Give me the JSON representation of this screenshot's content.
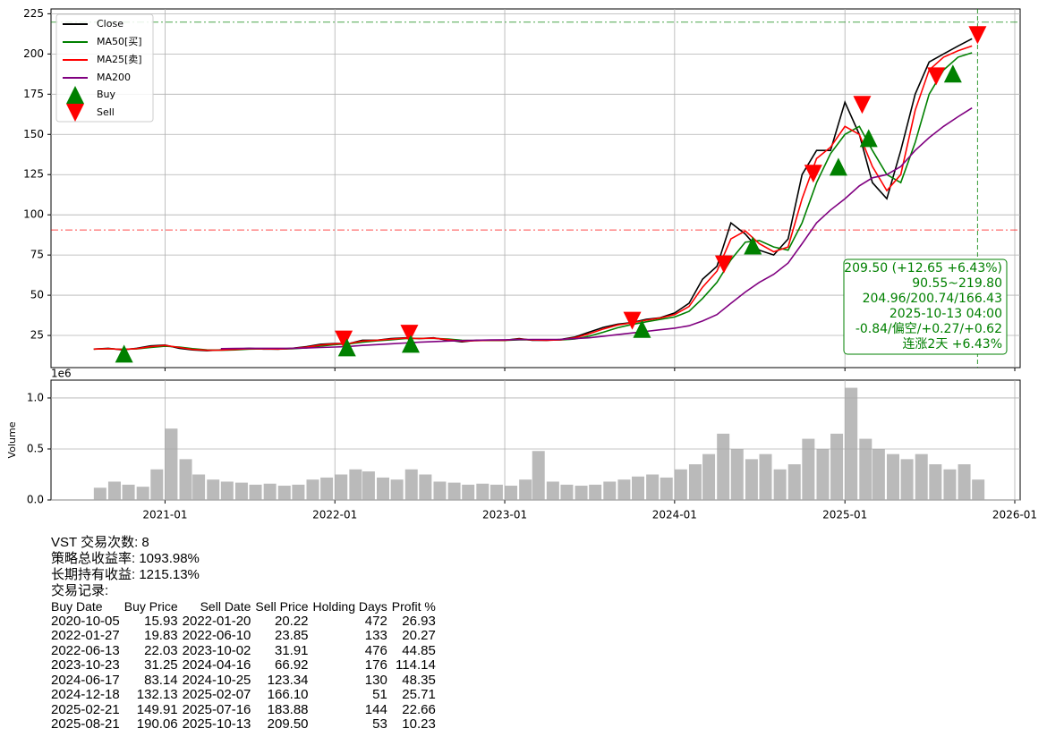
{
  "chart_data": [
    {
      "type": "line",
      "xlim": [
        "2020-05",
        "2026-01"
      ],
      "ylim": [
        5,
        228
      ],
      "yticks": [
        25,
        50,
        75,
        100,
        125,
        150,
        175,
        200,
        225
      ],
      "grid": true,
      "x": [
        "2020-08",
        "2020-09",
        "2020-10",
        "2020-11",
        "2020-12",
        "2021-01",
        "2021-02",
        "2021-03",
        "2021-04",
        "2021-05",
        "2021-06",
        "2021-07",
        "2021-08",
        "2021-09",
        "2021-10",
        "2021-11",
        "2021-12",
        "2022-01",
        "2022-02",
        "2022-03",
        "2022-04",
        "2022-05",
        "2022-06",
        "2022-07",
        "2022-08",
        "2022-09",
        "2022-10",
        "2022-11",
        "2022-12",
        "2023-01",
        "2023-02",
        "2023-03",
        "2023-04",
        "2023-05",
        "2023-06",
        "2023-07",
        "2023-08",
        "2023-09",
        "2023-10",
        "2023-11",
        "2023-12",
        "2024-01",
        "2024-02",
        "2024-03",
        "2024-04",
        "2024-05",
        "2024-06",
        "2024-07",
        "2024-08",
        "2024-09",
        "2024-10",
        "2024-11",
        "2024-12",
        "2025-01",
        "2025-02",
        "2025-03",
        "2025-04",
        "2025-05",
        "2025-06",
        "2025-07",
        "2025-08",
        "2025-09",
        "2025-10"
      ],
      "series": [
        {
          "name": "Close",
          "color": "#000000",
          "values": [
            16.5,
            17,
            16,
            17,
            18.5,
            19,
            17,
            16,
            15.5,
            16,
            16.5,
            17,
            16.5,
            16.5,
            17,
            18,
            19.5,
            20,
            20,
            22,
            22,
            23,
            23.5,
            23,
            23.5,
            22,
            21,
            22,
            22,
            22,
            23,
            22,
            22,
            22.5,
            24,
            27,
            30,
            32,
            33,
            35,
            36,
            39,
            45,
            60,
            68,
            95,
            88,
            78,
            75,
            85,
            125,
            140,
            140,
            170,
            150,
            120,
            110,
            140,
            175,
            195,
            200,
            205,
            209.5
          ]
        },
        {
          "name": "MA50[买]",
          "color": "#008000",
          "values": [
            16.5,
            16.7,
            16.4,
            16.6,
            17.5,
            18.3,
            17.8,
            16.8,
            16,
            15.8,
            16,
            16.5,
            16.6,
            16.5,
            16.7,
            17.3,
            18.4,
            19.3,
            19.8,
            20.8,
            21.6,
            22.3,
            23,
            23.2,
            23.2,
            22.8,
            22,
            21.8,
            21.9,
            21.9,
            22.3,
            22.3,
            22.1,
            22.2,
            22.8,
            24.5,
            27,
            29.8,
            31.8,
            33.5,
            35,
            36.5,
            40,
            48,
            58,
            72,
            83,
            84,
            80,
            78,
            95,
            120,
            138,
            150,
            155,
            140,
            125,
            120,
            145,
            175,
            190,
            198,
            200.74
          ]
        },
        {
          "name": "MA25[卖]",
          "color": "#ff0000",
          "values": [
            16.5,
            16.8,
            16.3,
            16.8,
            18,
            18.8,
            17.5,
            16.3,
            15.8,
            15.9,
            16.3,
            16.8,
            16.6,
            16.5,
            16.9,
            17.7,
            19,
            19.8,
            20,
            21.5,
            22,
            22.7,
            23.3,
            23.1,
            23.3,
            22.4,
            21.4,
            21.8,
            22,
            22,
            22.7,
            22.2,
            22,
            22.3,
            23.5,
            26,
            29,
            31.5,
            32.8,
            34.5,
            35.8,
            38,
            43,
            55,
            65,
            85,
            90,
            82,
            77,
            80,
            110,
            135,
            142,
            155,
            150,
            130,
            115,
            125,
            165,
            190,
            198,
            202,
            204.96
          ]
        },
        {
          "name": "MA200",
          "color": "#800080",
          "values": [
            null,
            null,
            null,
            null,
            null,
            null,
            null,
            null,
            null,
            16.8,
            16.9,
            17,
            17,
            17,
            17,
            17.2,
            17.5,
            17.8,
            18.2,
            18.8,
            19.3,
            19.8,
            20.3,
            20.8,
            21.2,
            21.5,
            21.8,
            22,
            22.2,
            22.3,
            22.4,
            22.5,
            22.5,
            22.6,
            23,
            23.5,
            24.5,
            25.5,
            26.5,
            27.5,
            28.5,
            29.5,
            31,
            34,
            38,
            45,
            52,
            58,
            63,
            70,
            82,
            95,
            103,
            110,
            118,
            123,
            125,
            130,
            140,
            148,
            155,
            161,
            166.43
          ]
        }
      ],
      "markers": [
        {
          "name": "Buy",
          "color": "#008000"
        },
        {
          "name": "Sell",
          "color": "#ff0000"
        }
      ],
      "hlines": [
        {
          "value": 219.8,
          "color": "#008000"
        },
        {
          "value": 90.55,
          "color": "#ff0000"
        }
      ],
      "vline": {
        "x": "2025-10-13",
        "color": "#008000"
      },
      "annotation": {
        "color": "#008000",
        "lines": [
          "209.50 (+12.65 +6.43%)",
          "90.55~219.80",
          "204.96/200.74/166.43",
          "2025-10-13 04:00",
          "-0.84/偏空/+0.27/+0.62",
          "连涨2天 +6.43%"
        ]
      }
    },
    {
      "type": "bar",
      "ylabel": "Volume",
      "offset_text": "1e6",
      "color": "#a9a9a9",
      "xlim": [
        "2020-05",
        "2026-01"
      ],
      "ylim": [
        0,
        1175000
      ],
      "yticks": [
        {
          "value": 0,
          "label": "0.0"
        },
        {
          "value": 500000,
          "label": "0.5"
        },
        {
          "value": 1000000,
          "label": "1.0"
        }
      ],
      "xticks": [
        "2021-01",
        "2022-01",
        "2023-01",
        "2024-01",
        "2025-01",
        "2026-01"
      ],
      "grid": true,
      "x": [
        "2020-08",
        "2020-09",
        "2020-10",
        "2020-11",
        "2020-12",
        "2021-01",
        "2021-02",
        "2021-03",
        "2021-04",
        "2021-05",
        "2021-06",
        "2021-07",
        "2021-08",
        "2021-09",
        "2021-10",
        "2021-11",
        "2021-12",
        "2022-01",
        "2022-02",
        "2022-03",
        "2022-04",
        "2022-05",
        "2022-06",
        "2022-07",
        "2022-08",
        "2022-09",
        "2022-10",
        "2022-11",
        "2022-12",
        "2023-01",
        "2023-02",
        "2023-03",
        "2023-04",
        "2023-05",
        "2023-06",
        "2023-07",
        "2023-08",
        "2023-09",
        "2023-10",
        "2023-11",
        "2023-12",
        "2024-01",
        "2024-02",
        "2024-03",
        "2024-04",
        "2024-05",
        "2024-06",
        "2024-07",
        "2024-08",
        "2024-09",
        "2024-10",
        "2024-11",
        "2024-12",
        "2025-01",
        "2025-02",
        "2025-03",
        "2025-04",
        "2025-05",
        "2025-06",
        "2025-07",
        "2025-08",
        "2025-09",
        "2025-10"
      ],
      "values": [
        120000,
        180000,
        150000,
        130000,
        300000,
        700000,
        400000,
        250000,
        200000,
        180000,
        170000,
        150000,
        160000,
        140000,
        150000,
        200000,
        220000,
        250000,
        300000,
        280000,
        220000,
        200000,
        300000,
        250000,
        180000,
        170000,
        150000,
        160000,
        150000,
        140000,
        200000,
        480000,
        180000,
        150000,
        140000,
        150000,
        180000,
        200000,
        230000,
        250000,
        220000,
        300000,
        350000,
        450000,
        650000,
        500000,
        400000,
        450000,
        300000,
        350000,
        600000,
        500000,
        650000,
        1100000,
        600000,
        500000,
        450000,
        400000,
        450000,
        350000,
        300000,
        350000,
        200000
      ]
    }
  ],
  "output": {
    "lines": [
      "VST 交易次数: 8",
      "策略总收益率: 1093.98%",
      "长期持有收益: 1215.13%",
      "交易记录:"
    ],
    "table": {
      "header": [
        "Buy Date",
        "Buy Price",
        "Sell Date",
        "Sell Price",
        "Holding Days",
        "Profit %"
      ],
      "rows": [
        [
          "2020-10-05",
          "15.93",
          "2022-01-20",
          "20.22",
          "472",
          "26.93"
        ],
        [
          "2022-01-27",
          "19.83",
          "2022-06-10",
          "23.85",
          "133",
          "20.27"
        ],
        [
          "2022-06-13",
          "22.03",
          "2023-10-02",
          "31.91",
          "476",
          "44.85"
        ],
        [
          "2023-10-23",
          "31.25",
          "2024-04-16",
          "66.92",
          "176",
          "114.14"
        ],
        [
          "2024-06-17",
          "83.14",
          "2024-10-25",
          "123.34",
          "130",
          "48.35"
        ],
        [
          "2024-12-18",
          "132.13",
          "2025-02-07",
          "166.10",
          "51",
          "25.71"
        ],
        [
          "2025-02-21",
          "149.91",
          "2025-07-16",
          "183.88",
          "144",
          "22.66"
        ],
        [
          "2025-08-21",
          "190.06",
          "2025-10-13",
          "209.50",
          "53",
          "10.23"
        ]
      ]
    }
  }
}
